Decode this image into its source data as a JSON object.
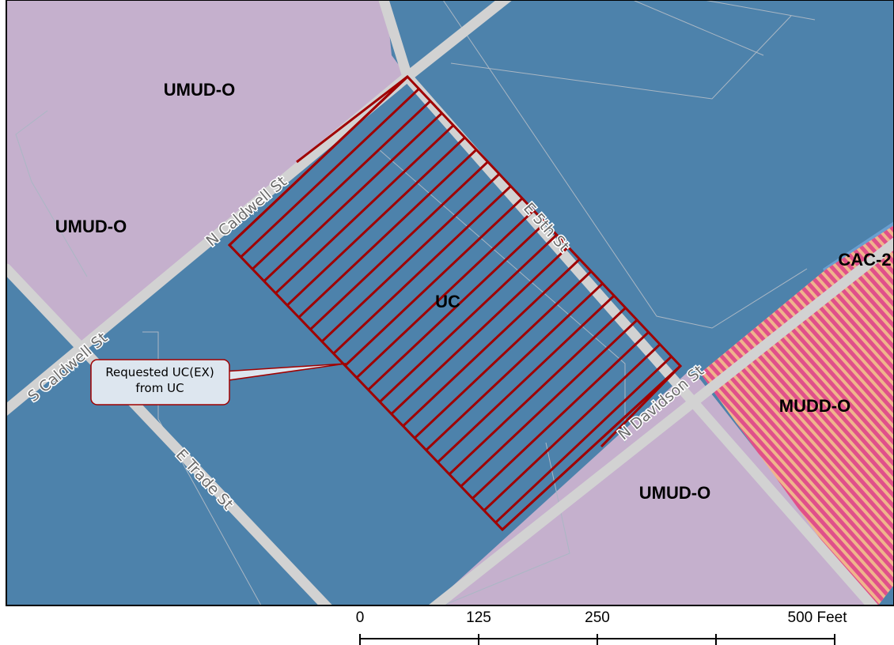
{
  "zones": [
    {
      "label": "UMUD-O"
    },
    {
      "label": "UMUD-O"
    },
    {
      "label": "UC"
    },
    {
      "label": "CAC-2"
    },
    {
      "label": "MUDD-O"
    },
    {
      "label": "UMUD-O"
    }
  ],
  "streets": [
    {
      "label": "N Caldwell St"
    },
    {
      "label": "E 5th St"
    },
    {
      "label": "S Caldwell St"
    },
    {
      "label": "E Trade St"
    },
    {
      "label": "N Davidson St"
    }
  ],
  "callout": {
    "lines": [
      "Requested UC(EX)",
      "from UC"
    ]
  },
  "scale_bar": {
    "lim": [
      0,
      500
    ],
    "ticks": [
      0,
      125,
      250,
      {
        "value": 500,
        "label": "500 Feet"
      }
    ]
  }
}
